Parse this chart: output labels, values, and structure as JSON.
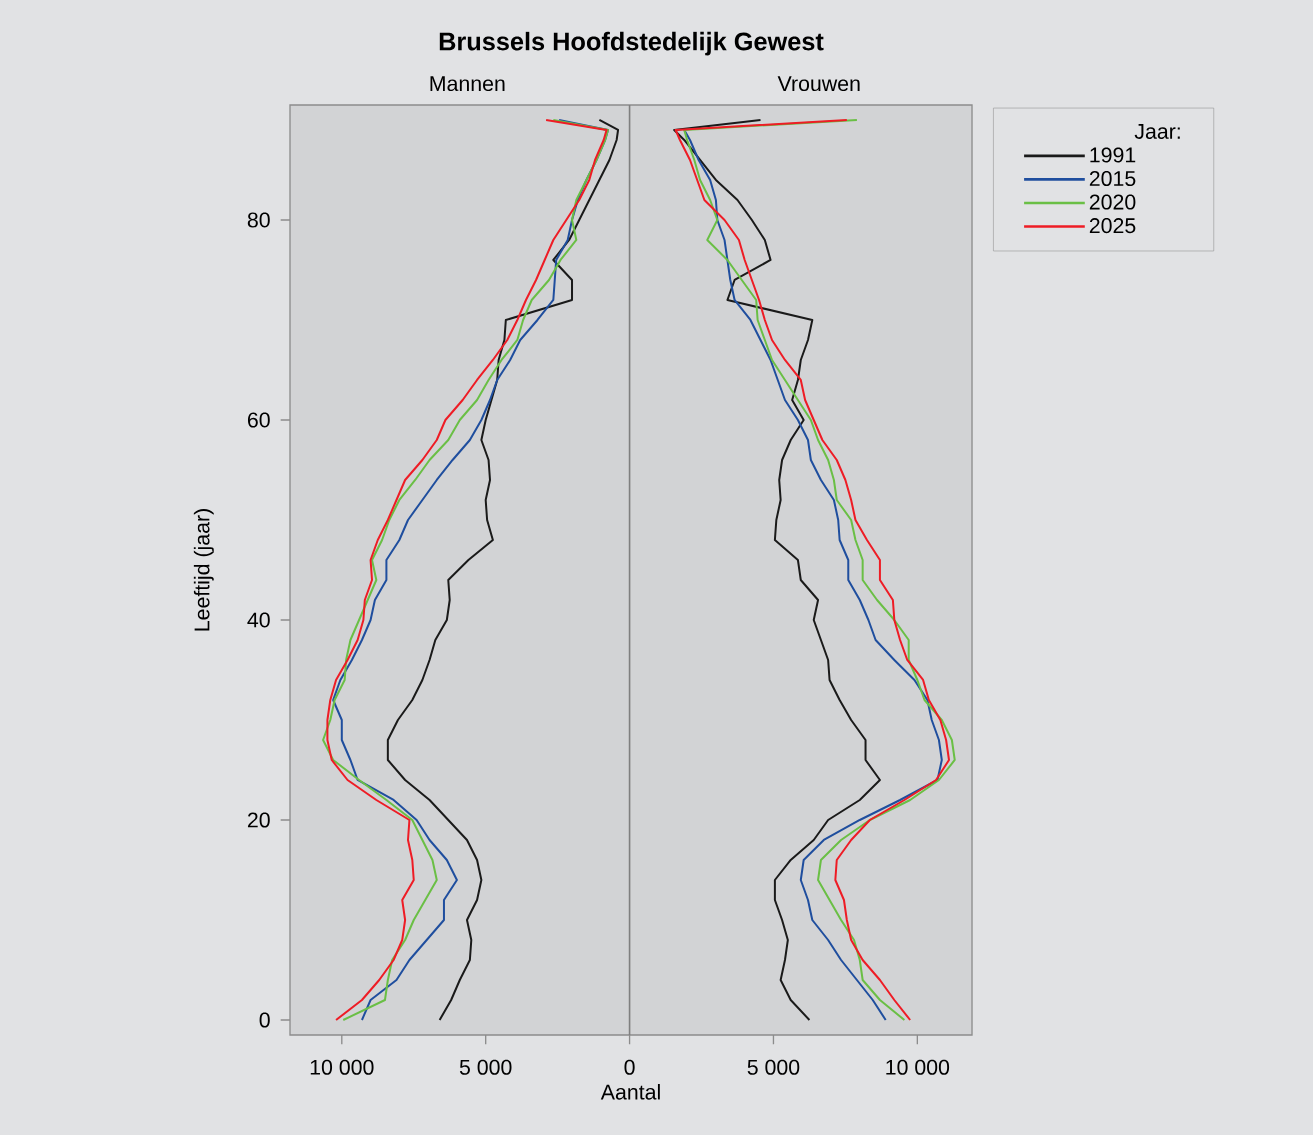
{
  "chart_data": {
    "type": "line",
    "orientation": "horizontal",
    "title": "Brussels Hoofdstedelijk Gewest",
    "annotations": [
      "Mannen",
      "Vrouwen"
    ],
    "xlabel": "Aantal",
    "ylabel": "Leeftijd (jaar)",
    "legend_title": "Jaar:",
    "legend": "right",
    "x": [
      0,
      2,
      4,
      6,
      8,
      10,
      12,
      14,
      16,
      18,
      20,
      22,
      24,
      26,
      28,
      30,
      32,
      34,
      36,
      38,
      40,
      42,
      44,
      46,
      48,
      50,
      52,
      54,
      56,
      58,
      60,
      62,
      64,
      66,
      68,
      70,
      72,
      74,
      76,
      78,
      80,
      82,
      84,
      86,
      88,
      89,
      90
    ],
    "xlim": [
      -11800,
      11900
    ],
    "xticks": [
      {
        "value": -10000,
        "label": "10 000"
      },
      {
        "value": -5000,
        "label": "5 000"
      },
      0,
      {
        "value": 5000,
        "label": "5 000"
      },
      {
        "value": 10000,
        "label": "10 000"
      }
    ],
    "ylim": [
      -1.5,
      91.5
    ],
    "yticks": [
      0,
      20,
      40,
      60,
      80
    ],
    "ref_lines": [
      {
        "axis": "x",
        "value": 0,
        "color": "#7f7f7f"
      }
    ],
    "series": [
      {
        "name": "1991",
        "color": "#1a1a1a",
        "values": [
          -6600,
          -6200,
          -5900,
          -5550,
          -5500,
          -5650,
          -5300,
          -5150,
          -5300,
          -5650,
          -6300,
          -6950,
          -7800,
          -8400,
          -8400,
          -8050,
          -7550,
          -7200,
          -6950,
          -6750,
          -6350,
          -6250,
          -6300,
          -5600,
          -4750,
          -4950,
          -5000,
          -4850,
          -4900,
          -5150,
          -5000,
          -4800,
          -4600,
          -4550,
          -4350,
          -4300,
          -2000,
          -2000,
          -2650,
          -2100,
          -1750,
          -1400,
          -1050,
          -700,
          -450,
          -400,
          -1050
        ]
      },
      {
        "name": "2015",
        "color": "#1f4e9e",
        "values": [
          -9300,
          -9000,
          -8100,
          -7650,
          -7050,
          -6450,
          -6450,
          -6000,
          -6350,
          -6950,
          -7400,
          -8200,
          -9450,
          -9700,
          -10000,
          -10000,
          -10300,
          -10050,
          -9650,
          -9300,
          -9000,
          -8850,
          -8450,
          -8450,
          -8000,
          -7700,
          -7200,
          -6700,
          -6150,
          -5550,
          -5150,
          -4850,
          -4600,
          -4150,
          -3800,
          -3200,
          -2650,
          -2600,
          -2550,
          -2150,
          -2000,
          -1800,
          -1500,
          -1150,
          -850,
          -750,
          -2450
        ]
      },
      {
        "name": "2020",
        "color": "#6abf45",
        "values": [
          -9950,
          -8500,
          -8400,
          -8250,
          -7800,
          -7500,
          -7100,
          -6700,
          -6850,
          -7200,
          -7550,
          -8450,
          -9400,
          -10300,
          -10650,
          -10400,
          -10250,
          -9900,
          -9850,
          -9700,
          -9400,
          -9100,
          -8800,
          -8950,
          -8600,
          -8350,
          -8000,
          -7450,
          -6950,
          -6300,
          -5900,
          -5300,
          -4900,
          -4450,
          -3900,
          -3700,
          -3400,
          -2800,
          -2400,
          -1850,
          -2000,
          -1850,
          -1500,
          -1150,
          -850,
          -750,
          -2650
        ]
      },
      {
        "name": "2025",
        "color": "#ee1c25",
        "values": [
          -10200,
          -9300,
          -8700,
          -8200,
          -7900,
          -7800,
          -7900,
          -7500,
          -7550,
          -7700,
          -7650,
          -8800,
          -9800,
          -10350,
          -10500,
          -10500,
          -10400,
          -10200,
          -9800,
          -9450,
          -9250,
          -9200,
          -8950,
          -9000,
          -8750,
          -8400,
          -8100,
          -7800,
          -7200,
          -6700,
          -6400,
          -5800,
          -5300,
          -4750,
          -4250,
          -3900,
          -3600,
          -3250,
          -2950,
          -2650,
          -2200,
          -1750,
          -1400,
          -1200,
          -900,
          -800,
          -2900
        ]
      },
      {
        "color": "#1a1a1a",
        "values": [
          6250,
          5600,
          5250,
          5400,
          5500,
          5300,
          5050,
          5050,
          5600,
          6400,
          6900,
          8000,
          8700,
          8200,
          8200,
          7700,
          7300,
          6950,
          6900,
          6650,
          6400,
          6550,
          5950,
          5850,
          5050,
          5100,
          5250,
          5200,
          5300,
          5600,
          6050,
          5650,
          5850,
          5950,
          6200,
          6350,
          3400,
          3650,
          4900,
          4700,
          4250,
          3750,
          3000,
          2450,
          1900,
          1550,
          4550
        ]
      },
      {
        "color": "#1f4e9e",
        "values": [
          8900,
          8450,
          7900,
          7350,
          6900,
          6350,
          6200,
          5950,
          6050,
          6750,
          8000,
          9400,
          10700,
          10850,
          10750,
          10500,
          10350,
          9900,
          9200,
          8550,
          8300,
          8000,
          7600,
          7600,
          7300,
          7250,
          7100,
          6650,
          6300,
          6200,
          5850,
          5400,
          5150,
          4900,
          4550,
          4200,
          3650,
          3500,
          3400,
          3300,
          3050,
          3000,
          2800,
          2400,
          2100,
          1900,
          null
        ]
      },
      {
        "color": "#6abf45",
        "values": [
          9550,
          8700,
          8100,
          8000,
          7800,
          7350,
          6950,
          6550,
          6650,
          7350,
          8350,
          9750,
          10750,
          11300,
          11200,
          10850,
          10250,
          10000,
          9700,
          9700,
          9200,
          8600,
          8100,
          8100,
          7850,
          7700,
          7200,
          7100,
          6900,
          6550,
          6300,
          5850,
          5400,
          4950,
          4700,
          4450,
          4400,
          3900,
          3400,
          2700,
          3050,
          2800,
          2450,
          2250,
          2000,
          1900,
          7900
        ]
      },
      {
        "color": "#ee1c25",
        "values": [
          9750,
          9200,
          8700,
          8100,
          7700,
          7550,
          7450,
          7150,
          7200,
          7700,
          8350,
          9550,
          10650,
          11100,
          11000,
          10800,
          10400,
          10200,
          9650,
          9400,
          9200,
          9150,
          8700,
          8700,
          8250,
          7850,
          7700,
          7500,
          7200,
          6700,
          6400,
          6100,
          5950,
          5400,
          4950,
          4700,
          4500,
          4250,
          4000,
          3800,
          3300,
          2600,
          2350,
          2100,
          1750,
          1600,
          7550
        ]
      }
    ]
  }
}
